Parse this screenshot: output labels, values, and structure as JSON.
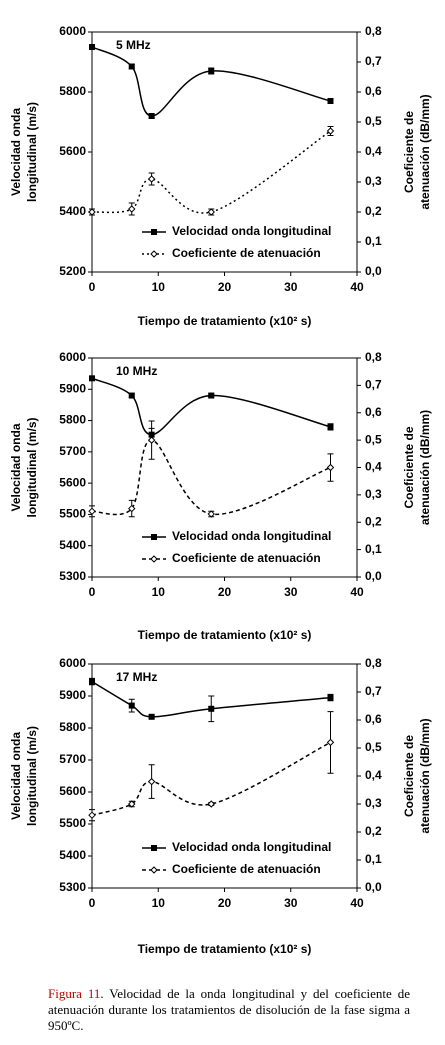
{
  "chart_data": [
    {
      "type": "line",
      "title": "5 MHz",
      "x": [
        0,
        6,
        9,
        18,
        36
      ],
      "xlim": [
        0,
        40
      ],
      "xticks": [
        0,
        10,
        20,
        30,
        40
      ],
      "xlabel": "Tiempo de tratamiento (x10² s)",
      "ylabel": [
        "Velocidad onda",
        "longitudinal (m/s)"
      ],
      "y2label": [
        "Coeficiente de",
        "atenuación (dB/mm)"
      ],
      "ylim": [
        5200,
        6000
      ],
      "yticks": [
        5200,
        5400,
        5600,
        5800,
        6000
      ],
      "y2lim": [
        0,
        0.8
      ],
      "y2ticks": [
        {
          "value": 0,
          "label": "0,0"
        },
        {
          "value": 0.1,
          "label": "0,1"
        },
        {
          "value": 0.2,
          "label": "0,2"
        },
        {
          "value": 0.3,
          "label": "0,3"
        },
        {
          "value": 0.4,
          "label": "0,4"
        },
        {
          "value": 0.5,
          "label": "0,5"
        },
        {
          "value": 0.6,
          "label": "0,6"
        },
        {
          "value": 0.7,
          "label": "0,7"
        },
        {
          "value": 0.8,
          "label": "0,8"
        }
      ],
      "legend": "lower right",
      "series": [
        {
          "name": "Velocidad onda longitudinal",
          "color": "#000000",
          "marker": "square",
          "linestyle": "solid",
          "values": [
            5950,
            5885,
            5720,
            5870,
            5770
          ],
          "errors": [
            8,
            8,
            8,
            10,
            8
          ]
        },
        {
          "name": "Coeficiente de atenuación",
          "color": "#000000",
          "marker": "diamond",
          "linestyle": "dotted",
          "axis": "y2",
          "values": [
            0.2,
            0.21,
            0.31,
            0.2,
            0.47
          ],
          "errors": [
            0.01,
            0.02,
            0.02,
            0.01,
            0.015
          ]
        }
      ]
    },
    {
      "type": "line",
      "title": "10 MHz",
      "x": [
        0,
        6,
        9,
        18,
        36
      ],
      "xlim": [
        0,
        40
      ],
      "xticks": [
        0,
        10,
        20,
        30,
        40
      ],
      "xlabel": "Tiempo de tratamiento (x10² s)",
      "ylabel": [
        "Velocidad onda",
        "longitudinal (m/s)"
      ],
      "y2label": [
        "Coeficiente de",
        "atenuación (dB/mm)"
      ],
      "ylim": [
        5300,
        6000
      ],
      "yticks": [
        5300,
        5400,
        5500,
        5600,
        5700,
        5800,
        5900,
        6000
      ],
      "y2lim": [
        0,
        0.8
      ],
      "y2ticks": [
        {
          "value": 0,
          "label": "0,0"
        },
        {
          "value": 0.1,
          "label": "0,1"
        },
        {
          "value": 0.2,
          "label": "0,2"
        },
        {
          "value": 0.3,
          "label": "0,3"
        },
        {
          "value": 0.4,
          "label": "0,4"
        },
        {
          "value": 0.5,
          "label": "0,5"
        },
        {
          "value": 0.6,
          "label": "0,6"
        },
        {
          "value": 0.7,
          "label": "0,7"
        },
        {
          "value": 0.8,
          "label": "0,8"
        }
      ],
      "legend": "lower right",
      "series": [
        {
          "name": "Velocidad onda longitudinal",
          "color": "#000000",
          "marker": "square",
          "linestyle": "solid",
          "values": [
            5935,
            5880,
            5755,
            5880,
            5780
          ],
          "errors": [
            5,
            5,
            20,
            5,
            10
          ]
        },
        {
          "name": "Coeficiente de atenuación",
          "color": "#000000",
          "marker": "diamond",
          "linestyle": "dashed",
          "axis": "y2",
          "values": [
            0.24,
            0.25,
            0.5,
            0.23,
            0.4
          ],
          "errors": [
            0.02,
            0.03,
            0.07,
            0.01,
            0.05
          ]
        }
      ]
    },
    {
      "type": "line",
      "title": "17 MHz",
      "x": [
        0,
        6,
        9,
        18,
        36
      ],
      "xlim": [
        0,
        40
      ],
      "xticks": [
        0,
        10,
        20,
        30,
        40
      ],
      "xlabel": "Tiempo de tratamiento (x10² s)",
      "ylabel": [
        "Velocidad onda",
        "longitudinal (m/s)"
      ],
      "y2label": [
        "Coeficiente de",
        "atenuación (dB/mm)"
      ],
      "ylim": [
        5300,
        6000
      ],
      "yticks": [
        5300,
        5400,
        5500,
        5600,
        5700,
        5800,
        5900,
        6000
      ],
      "y2lim": [
        0,
        0.8
      ],
      "y2ticks": [
        {
          "value": 0,
          "label": "0,0"
        },
        {
          "value": 0.1,
          "label": "0,1"
        },
        {
          "value": 0.2,
          "label": "0,2"
        },
        {
          "value": 0.3,
          "label": "0,3"
        },
        {
          "value": 0.4,
          "label": "0,4"
        },
        {
          "value": 0.5,
          "label": "0,5"
        },
        {
          "value": 0.6,
          "label": "0,6"
        },
        {
          "value": 0.7,
          "label": "0,7"
        },
        {
          "value": 0.8,
          "label": "0,8"
        }
      ],
      "legend": "lower right",
      "series": [
        {
          "name": "Velocidad onda longitudinal",
          "color": "#000000",
          "marker": "square",
          "linestyle": "solid",
          "values": [
            5945,
            5870,
            5835,
            5860,
            5895
          ],
          "errors": [
            10,
            20,
            5,
            40,
            10
          ]
        },
        {
          "name": "Coeficiente de atenuación",
          "color": "#000000",
          "marker": "diamond",
          "linestyle": "dashed",
          "axis": "y2",
          "values": [
            0.26,
            0.3,
            0.38,
            0.3,
            0.52
          ],
          "errors": [
            0.02,
            0.01,
            0.06,
            0.005,
            0.11
          ]
        }
      ]
    }
  ],
  "caption": {
    "label": "Figura 11",
    "text": ". Velocidad de la onda longitudinal y del coeficiente de atenuación durante los tratamientos de disolución de la fase sigma a 950ºC."
  }
}
